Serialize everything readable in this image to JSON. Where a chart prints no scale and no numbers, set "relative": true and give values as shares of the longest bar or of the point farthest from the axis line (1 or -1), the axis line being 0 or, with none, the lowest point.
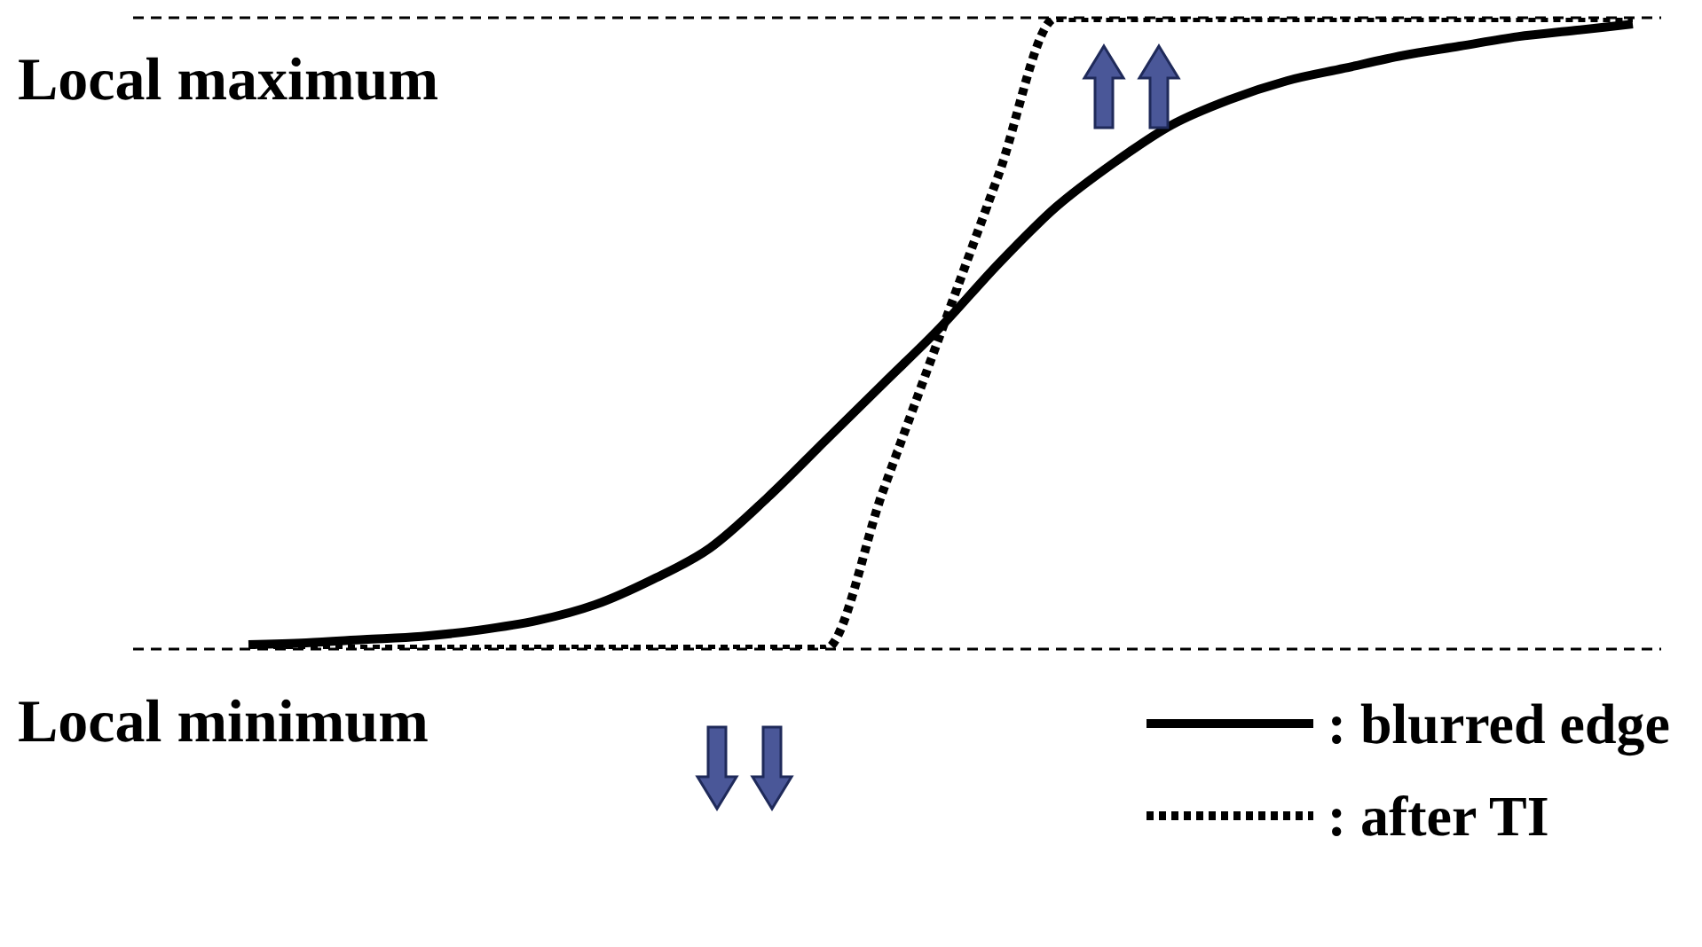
{
  "chart_data": {
    "type": "line",
    "relative": true,
    "categories": [
      null,
      null,
      null,
      null,
      null,
      null,
      null,
      null,
      null,
      null,
      null,
      null,
      null,
      null,
      null,
      null,
      null,
      null,
      null,
      null,
      null,
      null,
      null,
      null,
      null
    ],
    "series": [
      {
        "name": ": blurred edge",
        "color": "#000000",
        "line_style": "solid",
        "values": [
          0.007,
          0.01,
          0.015,
          0.02,
          0.03,
          0.045,
          0.07,
          0.11,
          0.16,
          0.24,
          0.33,
          0.42,
          0.51,
          0.61,
          0.7,
          0.77,
          0.83,
          0.87,
          0.9,
          0.92,
          0.94,
          0.955,
          0.97,
          0.98,
          0.99
        ]
      },
      {
        "name": ": after TI",
        "color": "#000000",
        "line_style": "dotted",
        "values": [
          0,
          0,
          0,
          0,
          0,
          0,
          0,
          0,
          0,
          0,
          0,
          0.25,
          0.5,
          0.75,
          1,
          1,
          1,
          1,
          1,
          1,
          1,
          1,
          1,
          1,
          1
        ]
      }
    ],
    "ref_lines": [
      {
        "axis": "y",
        "value": 0,
        "label": "Local minimum",
        "line_style": "dashed"
      },
      {
        "axis": "y",
        "value": 1,
        "label": "Local maximum",
        "line_style": "dashed"
      }
    ],
    "legend": "bottom right",
    "marker": "none",
    "grid": false
  }
}
